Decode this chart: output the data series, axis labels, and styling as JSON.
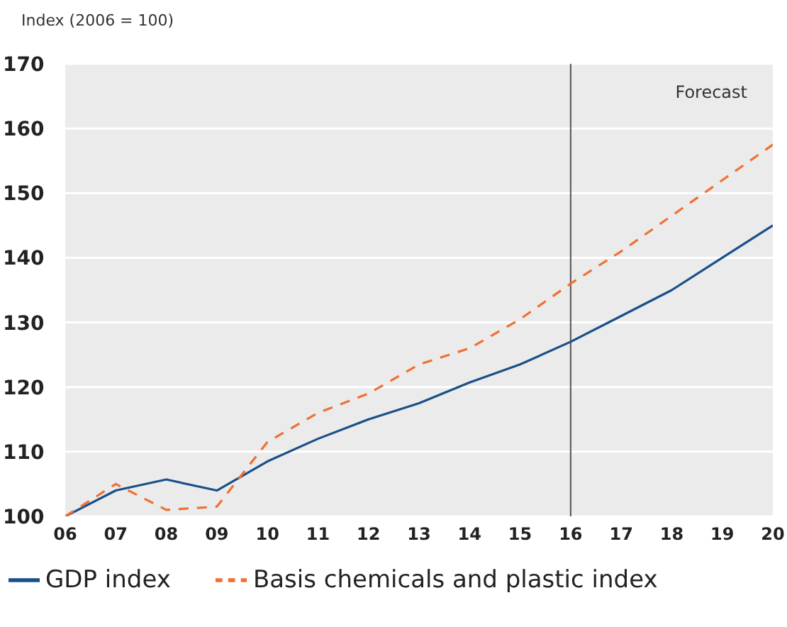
{
  "chart_data": {
    "type": "line",
    "ylabel": "Index (2006 = 100)",
    "categories": [
      "06",
      "07",
      "08",
      "09",
      "10",
      "11",
      "12",
      "13",
      "14",
      "15",
      "16",
      "17",
      "18",
      "19",
      "20"
    ],
    "series": [
      {
        "name": "GDP index",
        "color": "#1a4f8a",
        "line_style": "solid",
        "values": [
          100,
          104,
          105.7,
          104,
          108.5,
          112,
          115,
          117.5,
          120.7,
          123.5,
          127,
          131,
          135,
          140,
          145
        ]
      },
      {
        "name": "Basis chemicals and plastic index",
        "color": "#f07033",
        "line_style": "dashed",
        "values": [
          100,
          105,
          101,
          101.5,
          111.5,
          116,
          119,
          123.5,
          126,
          130.5,
          136,
          141,
          146.5,
          152,
          157.5
        ]
      }
    ],
    "ylim": [
      100,
      170
    ],
    "yticks": [
      100,
      110,
      120,
      130,
      140,
      150,
      160,
      170
    ],
    "grid": "y",
    "legend": "bottom",
    "marker": "none",
    "ref_lines": [
      {
        "axis": "x",
        "value": "16",
        "color": "#555555"
      }
    ],
    "annotations": [
      "Forecast"
    ]
  }
}
